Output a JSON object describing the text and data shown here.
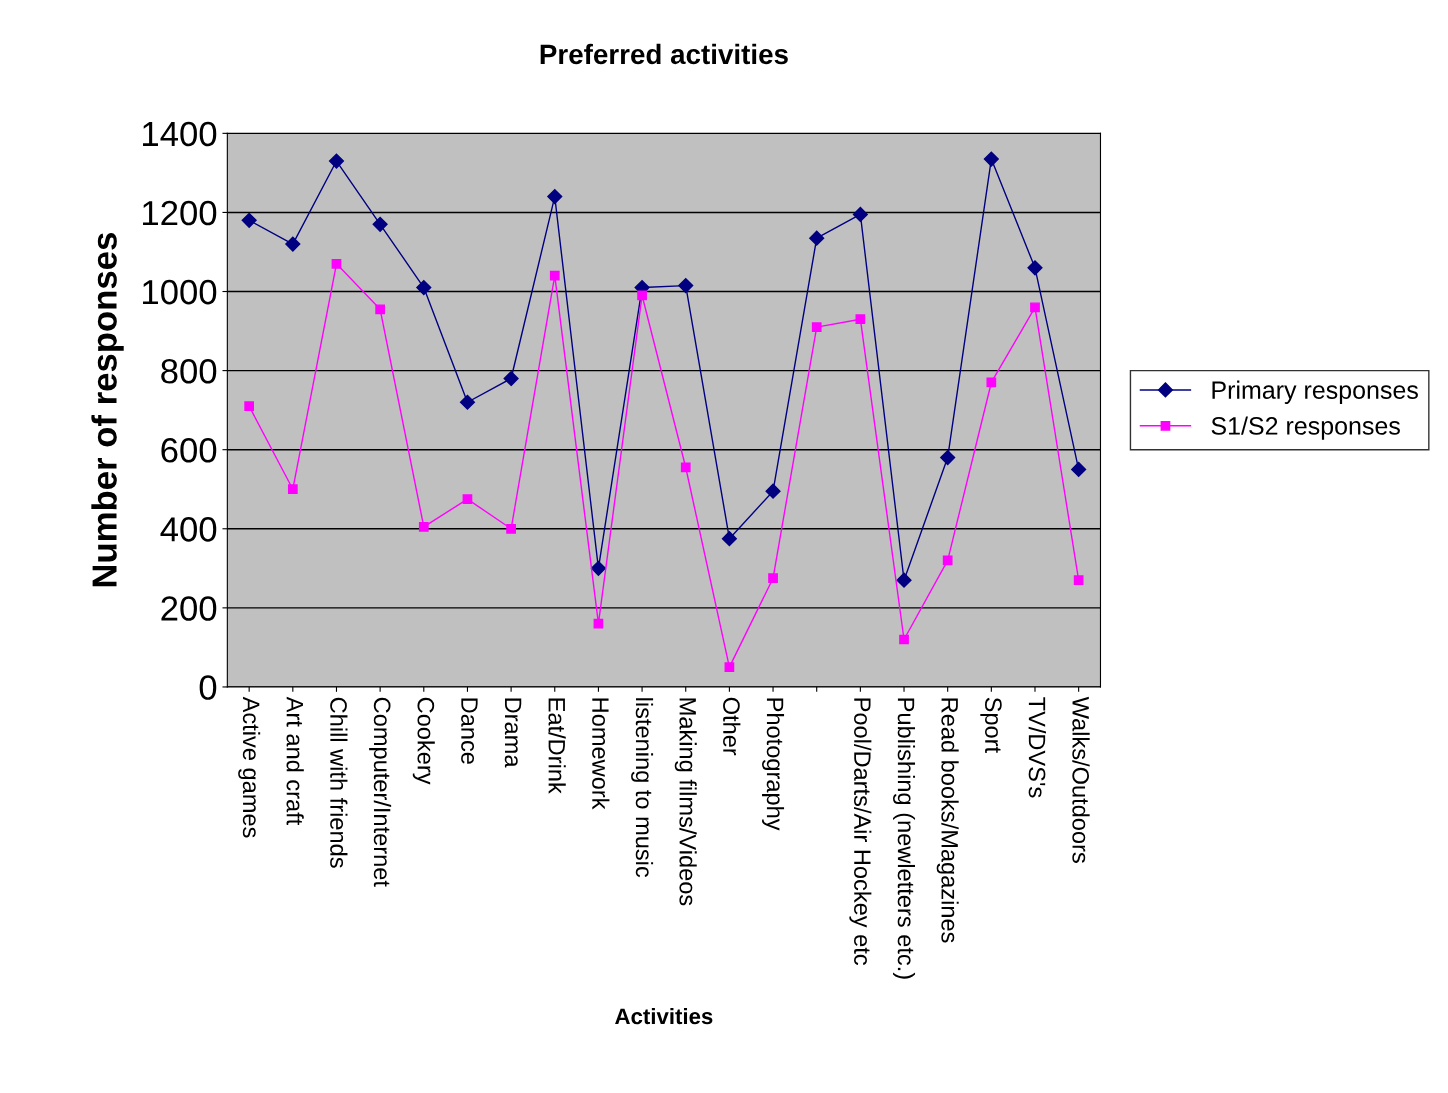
{
  "chart_data": {
    "type": "line",
    "title": "Preferred activities",
    "xlabel": "Activities",
    "ylabel": "Number of responses",
    "categories": [
      "Active games",
      "Art and craft",
      "Chill with friends",
      "Computer/Internet",
      "Cookery",
      "Dance",
      "Drama",
      "Eat/Drink",
      "Homework",
      "listening to music",
      "Making films/Videos",
      "Other",
      "Photography",
      null,
      "Pool/Darts/Air Hockey etc",
      "Publishing (newletters etc.)",
      "Read books/Magazines",
      "Sport",
      "TV/DVS's",
      "Walks/Outdoors"
    ],
    "series": [
      {
        "name": "Primary responses",
        "color": "#000080",
        "marker": "diamond",
        "values": [
          1180,
          1120,
          1330,
          1170,
          1010,
          720,
          780,
          1240,
          300,
          1010,
          1015,
          375,
          495,
          1135,
          1195,
          270,
          580,
          1335,
          1060,
          550
        ]
      },
      {
        "name": "S1/S2 responses",
        "color": "#ff00ff",
        "marker": "square",
        "values": [
          710,
          500,
          1070,
          955,
          405,
          475,
          400,
          1040,
          160,
          990,
          555,
          50,
          275,
          910,
          930,
          120,
          320,
          770,
          960,
          270
        ]
      }
    ],
    "ylim": [
      0,
      1400
    ],
    "yticks": [
      0,
      200,
      400,
      600,
      800,
      1000,
      1200,
      1400
    ],
    "grid": "y",
    "legend": "right",
    "line_style": "solid"
  }
}
